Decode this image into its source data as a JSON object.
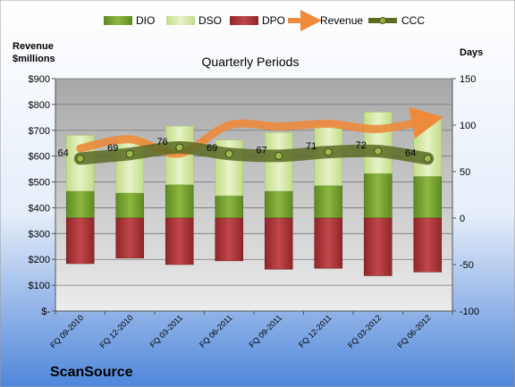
{
  "chart_data": {
    "type": "bar",
    "title": "Quarterly Periods",
    "company": "ScanSource",
    "y_left_label": [
      "Revenue",
      "$millions"
    ],
    "y_right_label": "Days",
    "y_left_ticks": [
      "$-",
      "$100",
      "$200",
      "$300",
      "$400",
      "$500",
      "$600",
      "$700",
      "$800",
      "$900"
    ],
    "y_left_range": [
      0,
      900
    ],
    "y_right_ticks": [
      "-100",
      "-50",
      "0",
      "50",
      "100",
      "150"
    ],
    "y_right_range": [
      -100,
      150
    ],
    "categories": [
      "FQ 09-2010",
      "FQ 12-2010",
      "FQ 03-2011",
      "FQ 06-2011",
      "FQ 09-2011",
      "FQ 12-2011",
      "FQ 03-2012",
      "FQ 06-2012"
    ],
    "legend": [
      "DIO",
      "DSO",
      "DPO",
      "Revenue",
      "CCC"
    ],
    "legend_position": "top",
    "series": [
      {
        "name": "DIO",
        "axis": "right",
        "color": "#77a033",
        "values": [
          29,
          27,
          36,
          24,
          29,
          35,
          48,
          45
        ]
      },
      {
        "name": "DSO",
        "axis": "right",
        "color": "#d6e8a8",
        "values": [
          60,
          60,
          63,
          60,
          63,
          65,
          66,
          65
        ]
      },
      {
        "name": "DPO",
        "axis": "right",
        "color": "#b03a3c",
        "values": [
          -49,
          -43,
          -50,
          -46,
          -55,
          -54,
          -62,
          -58
        ]
      },
      {
        "name": "Revenue",
        "axis": "left",
        "color": "#ed8a3c",
        "values": [
          630,
          665,
          610,
          720,
          715,
          725,
          705,
          740
        ]
      },
      {
        "name": "CCC",
        "axis": "right",
        "color": "#5a6b24",
        "values": [
          64,
          69,
          76,
          69,
          67,
          71,
          72,
          64
        ]
      }
    ],
    "ccc_labels": [
      "64",
      "69",
      "76",
      "69",
      "67",
      "71",
      "72",
      "64"
    ]
  }
}
